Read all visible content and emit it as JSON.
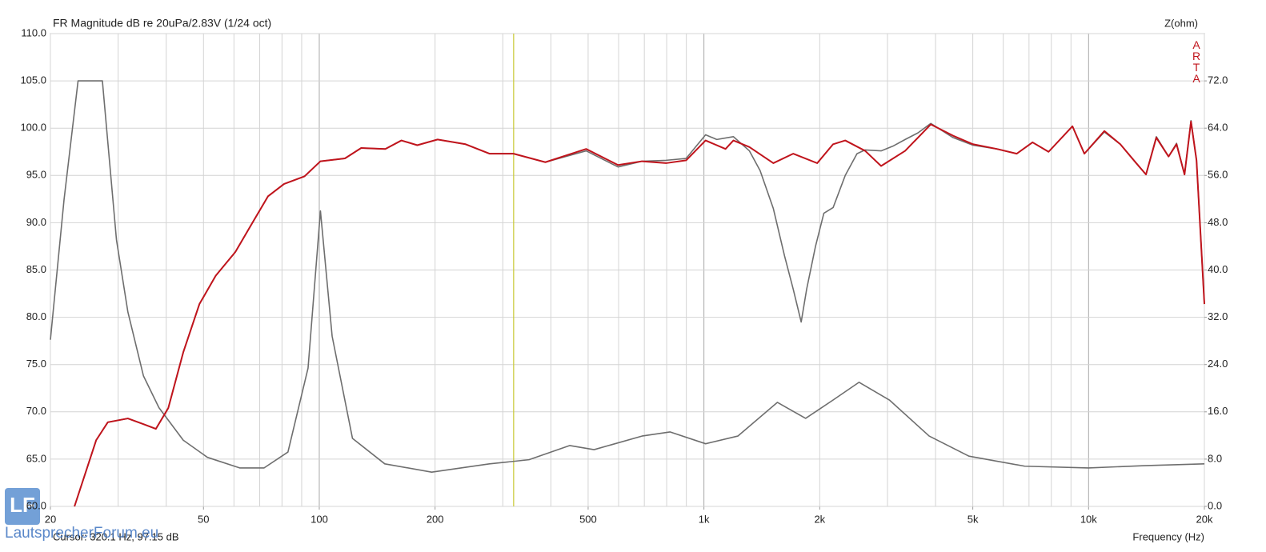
{
  "chart_data": {
    "type": "line",
    "title": "FR Magnitude dB re 20uPa/2.83V (1/24 oct)",
    "y2_label": "Z(ohm)",
    "brand": "ARTA",
    "x_label": "Frequency (Hz)",
    "cursor": {
      "x": 320.1,
      "label": "Cursor: 320.1 Hz, 97.15 dB",
      "color": "#c8c832"
    },
    "watermark": {
      "logo": "LF",
      "text": "LautsprecherForum.eu"
    },
    "log_x": true,
    "grid": true,
    "minor_grid": true,
    "xlim": [
      20,
      20000
    ],
    "xticks": [
      20,
      50,
      100,
      200,
      500,
      {
        "value": 1000,
        "label": "1k"
      },
      {
        "value": 2000,
        "label": "2k"
      },
      {
        "value": 5000,
        "label": "5k"
      },
      {
        "value": 10000,
        "label": "10k"
      },
      {
        "value": 20000,
        "label": "20k"
      }
    ],
    "ylim": [
      60,
      110
    ],
    "yticks": [
      {
        "value": 60,
        "label": "60.0"
      },
      {
        "value": 65,
        "label": "65.0"
      },
      {
        "value": 70,
        "label": "70.0"
      },
      {
        "value": 75,
        "label": "75.0"
      },
      {
        "value": 80,
        "label": "80.0"
      },
      {
        "value": 85,
        "label": "85.0"
      },
      {
        "value": 90,
        "label": "90.0"
      },
      {
        "value": 95,
        "label": "95.0"
      },
      {
        "value": 100,
        "label": "100.0"
      },
      {
        "value": 105,
        "label": "105.0"
      },
      {
        "value": 110,
        "label": "110.0"
      }
    ],
    "y2lim": [
      0,
      80
    ],
    "y2ticks": [
      {
        "value": 0,
        "label": "0.0"
      },
      {
        "value": 8,
        "label": "8.0"
      },
      {
        "value": 16,
        "label": "16.0"
      },
      {
        "value": 24,
        "label": "24.0"
      },
      {
        "value": 32,
        "label": "32.0"
      },
      {
        "value": 40,
        "label": "40.0"
      },
      {
        "value": 48,
        "label": "48.0"
      },
      {
        "value": 56,
        "label": "56.0"
      },
      {
        "value": 64,
        "label": "64.0"
      },
      {
        "value": 72,
        "label": "72.0"
      }
    ],
    "series": [
      {
        "color": "#6e6e6e",
        "axis": "y2",
        "x": [
          20,
          21.7,
          23.6,
          27.3,
          29.7,
          31.8,
          34.9,
          38.3,
          44.3,
          51.2,
          62.2,
          71.8,
          82.9,
          93.5,
          100.7,
          108,
          122,
          148,
          196,
          277,
          351,
          448,
          518,
          690,
          816,
          1010,
          1225,
          1552,
          1838,
          2167,
          2530,
          3035,
          3851,
          4885,
          6825,
          9990,
          13970,
          20000
        ],
        "values": [
          28.2,
          51.9,
          72.0,
          72.0,
          45.1,
          32.9,
          22.1,
          16.7,
          11.2,
          8.3,
          6.5,
          6.5,
          9.2,
          23.4,
          50.0,
          28.8,
          11.5,
          7.2,
          5.8,
          7.2,
          7.9,
          10.3,
          9.6,
          11.9,
          12.6,
          10.6,
          11.9,
          17.6,
          14.9,
          18.0,
          21.0,
          18.0,
          11.9,
          8.5,
          6.8,
          6.5,
          6.9,
          7.2
        ]
      },
      {
        "color": "#6e6e6e",
        "x": [
          23.1,
          26.3,
          28.2,
          31.8,
          34.9,
          37.6,
          40.5,
          44.3,
          48.8,
          53.8,
          60.5,
          66.8,
          73.6,
          81.0,
          91.5,
          100.7,
          116.6,
          128.5,
          148.5,
          163.5,
          179.8,
          203,
          240,
          277,
          320,
          387,
          494,
          598,
          690,
          797,
          899,
          1010,
          1080,
          1193,
          1313,
          1400,
          1515,
          1620,
          1706,
          1790,
          1850,
          1950,
          2050,
          2167,
          2330,
          2500,
          2625,
          2888,
          3100,
          3335,
          3600,
          3889,
          4445,
          5005,
          5775,
          6505,
          7150,
          7870,
          9080,
          9750,
          10990,
          12090,
          13300,
          14100,
          15000,
          16140,
          16930,
          17760,
          18460,
          19080,
          20000
        ],
        "values": [
          60.0,
          67.0,
          68.9,
          69.3,
          68.7,
          68.2,
          70.4,
          76.3,
          81.4,
          84.4,
          86.9,
          89.9,
          92.8,
          94.1,
          94.9,
          96.5,
          96.8,
          97.9,
          97.8,
          98.7,
          98.2,
          98.8,
          98.3,
          97.3,
          97.3,
          96.4,
          97.6,
          95.9,
          96.5,
          96.6,
          96.8,
          99.3,
          98.8,
          99.1,
          97.6,
          95.5,
          91.5,
          86.5,
          83.0,
          79.5,
          83.0,
          87.5,
          91.0,
          91.6,
          95.0,
          97.3,
          97.7,
          97.6,
          98.1,
          98.8,
          99.5,
          100.5,
          99.0,
          98.2,
          97.8,
          97.3,
          98.5,
          97.5,
          100.2,
          97.3,
          99.6,
          98.3,
          96.3,
          95.1,
          99.1,
          97.0,
          98.4,
          95.1,
          100.8,
          96.6,
          81.4
        ]
      },
      {
        "color": "#c0141c",
        "x": [
          23.1,
          26.3,
          28.2,
          31.8,
          34.9,
          37.6,
          40.5,
          44.3,
          48.8,
          53.8,
          60.5,
          66.8,
          73.6,
          81.0,
          91.5,
          100.7,
          116.6,
          128.5,
          148.5,
          163.5,
          179.8,
          203,
          240,
          277,
          320,
          387,
          494,
          598,
          690,
          797,
          899,
          1010,
          1138,
          1193,
          1313,
          1515,
          1706,
          1970,
          2167,
          2330,
          2625,
          2888,
          3335,
          3889,
          4445,
          5005,
          5775,
          6505,
          7150,
          7870,
          9080,
          9750,
          10990,
          12090,
          13300,
          14100,
          15000,
          16140,
          16930,
          17760,
          18460,
          19080,
          20000
        ],
        "values": [
          60.0,
          67.0,
          68.9,
          69.3,
          68.7,
          68.2,
          70.4,
          76.3,
          81.4,
          84.4,
          86.9,
          89.9,
          92.8,
          94.1,
          94.9,
          96.5,
          96.8,
          97.9,
          97.8,
          98.7,
          98.2,
          98.8,
          98.3,
          97.3,
          97.3,
          96.4,
          97.8,
          96.1,
          96.5,
          96.3,
          96.6,
          98.7,
          97.8,
          98.7,
          98.0,
          96.3,
          97.3,
          96.3,
          98.3,
          98.7,
          97.6,
          96.0,
          97.6,
          100.4,
          99.2,
          98.3,
          97.8,
          97.3,
          98.5,
          97.5,
          100.2,
          97.3,
          99.7,
          98.3,
          96.3,
          95.1,
          99.0,
          97.0,
          98.3,
          95.1,
          100.7,
          96.6,
          81.4
        ]
      }
    ]
  }
}
